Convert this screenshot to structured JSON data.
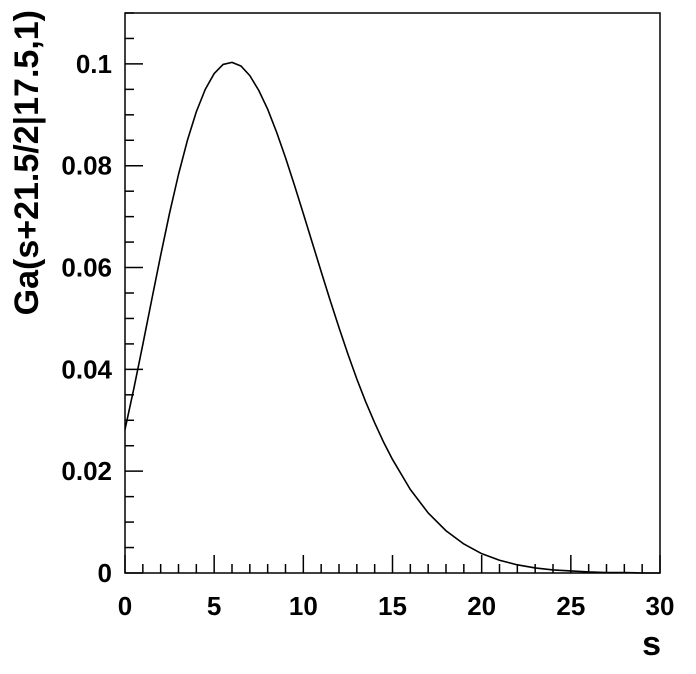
{
  "chart_data": {
    "type": "line",
    "title": "",
    "xlabel": "s",
    "ylabel": "Ga(s+21.5/2|17.5,1)",
    "xlim": [
      0,
      30
    ],
    "ylim": [
      0,
      0.11
    ],
    "grid": false,
    "legend": "none",
    "x_ticks": [
      {
        "value": 0,
        "label": "0"
      },
      {
        "value": 5,
        "label": "5"
      },
      {
        "value": 10,
        "label": "10"
      },
      {
        "value": 15,
        "label": "15"
      },
      {
        "value": 20,
        "label": "20"
      },
      {
        "value": 25,
        "label": "25"
      },
      {
        "value": 30,
        "label": "30"
      }
    ],
    "y_ticks": [
      {
        "value": 0,
        "label": "0"
      },
      {
        "value": 0.02,
        "label": "0.02"
      },
      {
        "value": 0.04,
        "label": "0.04"
      },
      {
        "value": 0.06,
        "label": "0.06"
      },
      {
        "value": 0.08,
        "label": "0.08"
      },
      {
        "value": 0.1,
        "label": "0.1"
      }
    ],
    "series": [
      {
        "color": "#000000",
        "x": [
          0,
          0.5,
          1,
          1.5,
          2,
          2.5,
          3,
          3.5,
          4,
          4.5,
          5,
          5.5,
          6,
          6.5,
          7,
          7.5,
          8,
          8.5,
          9,
          9.5,
          10,
          10.5,
          11,
          11.5,
          12,
          12.5,
          13,
          13.5,
          14,
          14.5,
          15,
          16,
          17,
          18,
          19,
          20,
          21,
          22,
          23,
          24,
          25,
          26,
          27,
          28,
          29,
          30
        ],
        "y": [
          0.0282,
          0.0363,
          0.0449,
          0.0537,
          0.0624,
          0.0707,
          0.0783,
          0.085,
          0.0906,
          0.095,
          0.0981,
          0.0999,
          0.1003,
          0.0996,
          0.0977,
          0.0948,
          0.0911,
          0.0866,
          0.0816,
          0.0762,
          0.0706,
          0.0649,
          0.0592,
          0.0536,
          0.0482,
          0.043,
          0.0381,
          0.0336,
          0.0295,
          0.0257,
          0.0223,
          0.0164,
          0.0118,
          0.0083,
          0.0057,
          0.0038,
          0.0025,
          0.0016,
          0.001,
          0.0006,
          0.0004,
          0.0002,
          0.0001,
          0.0001,
          0.0,
          0.0
        ]
      }
    ]
  }
}
